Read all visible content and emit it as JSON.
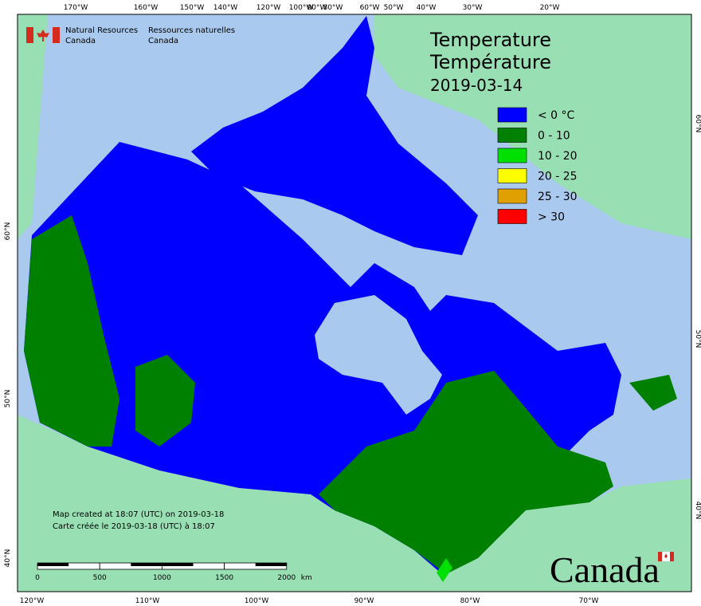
{
  "header": {
    "title_en": "Temperature",
    "title_fr": "Température",
    "date": "2019-03-14"
  },
  "agency": {
    "en": [
      "Natural Resources",
      "Canada"
    ],
    "fr": [
      "Ressources naturelles",
      "Canada"
    ]
  },
  "legend": [
    {
      "label": "< 0 °C",
      "color": "#0000ff"
    },
    {
      "label": "0 - 10",
      "color": "#008000"
    },
    {
      "label": "10 - 20",
      "color": "#00e000"
    },
    {
      "label": "20 - 25",
      "color": "#ffff00"
    },
    {
      "label": "25 - 30",
      "color": "#e0a000"
    },
    {
      "label": "> 30",
      "color": "#ff0000"
    }
  ],
  "graticule": {
    "top": [
      "170°W",
      "160°W",
      "150°W",
      "140°W",
      "120°W",
      "100°W",
      "90°W",
      "80°W",
      "60°W",
      "50°W",
      "40°W",
      "30°W",
      "20°W"
    ],
    "bottom": [
      "120°W",
      "110°W",
      "100°W",
      "90°W",
      "80°W",
      "70°W"
    ],
    "left": [
      "60°N",
      "50°N",
      "40°N"
    ],
    "right": [
      "60°N",
      "50°N",
      "40°N"
    ]
  },
  "scale_bar": {
    "labels": [
      "0",
      "500",
      "1000",
      "1500",
      "2000"
    ],
    "unit": "km"
  },
  "notes": [
    "Map created at 18:07 (UTC) on 2019-03-18",
    "Carte créée le 2019-03-18 (UTC) à 18:07"
  ],
  "wordmark": "Canada"
}
